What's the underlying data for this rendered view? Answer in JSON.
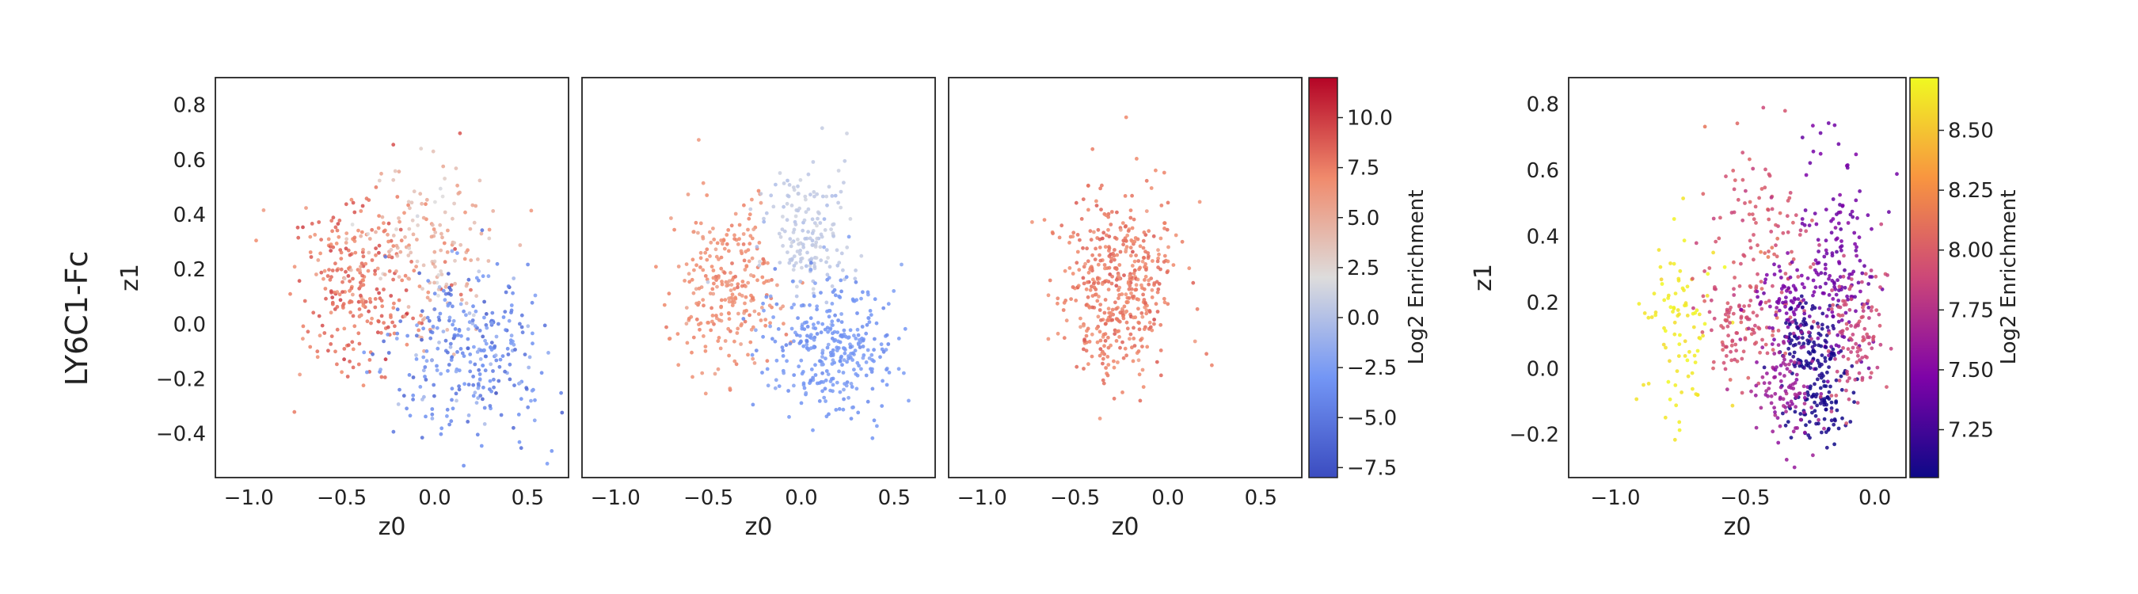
{
  "figure": {
    "row_label": "LY6C1-Fc"
  },
  "colorbars": [
    {
      "label": "Log2 Enrichment",
      "colormap": "coolwarm",
      "range": [
        -8.0,
        12.0
      ],
      "ticks": [
        -7.5,
        -5.0,
        -2.5,
        0.0,
        2.5,
        5.0,
        7.5,
        10.0
      ],
      "tick_labels": [
        "−7.5",
        "−5.0",
        "−2.5",
        "0.0",
        "2.5",
        "5.0",
        "7.5",
        "10.0"
      ]
    },
    {
      "label": "Log2 Enrichment",
      "colormap": "plasma",
      "range": [
        7.05,
        8.72
      ],
      "ticks": [
        7.25,
        7.5,
        7.75,
        8.0,
        8.25,
        8.5
      ],
      "tick_labels": [
        "7.25",
        "7.50",
        "7.75",
        "8.00",
        "8.25",
        "8.50"
      ]
    }
  ],
  "chart_data": [
    {
      "type": "scatter",
      "title": "",
      "xlabel": "z0",
      "ylabel": "z1",
      "xlim": [
        -1.18,
        0.72
      ],
      "ylim": [
        -0.56,
        0.9
      ],
      "xticks": [
        -1.0,
        -0.5,
        0.0,
        0.5
      ],
      "xtick_labels": [
        "−1.0",
        "−0.5",
        "0.0",
        "0.5"
      ],
      "yticks": [
        -0.4,
        -0.2,
        0.0,
        0.2,
        0.4,
        0.6,
        0.8
      ],
      "ytick_labels": [
        "−0.4",
        "−0.2",
        "0.0",
        "0.2",
        "0.4",
        "0.6",
        "0.8"
      ],
      "grid": false,
      "colorbar_index": 0,
      "clusters": [
        {
          "center": [
            -0.42,
            0.13
          ],
          "spread": [
            0.17,
            0.15
          ],
          "n": 260,
          "value": 7.8,
          "value_sd": 1.0
        },
        {
          "center": [
            -0.05,
            0.3
          ],
          "spread": [
            0.18,
            0.16
          ],
          "n": 160,
          "value": 4.5,
          "value_sd": 1.6
        },
        {
          "center": [
            0.2,
            -0.08
          ],
          "spread": [
            0.2,
            0.15
          ],
          "n": 300,
          "value": -3.8,
          "value_sd": 1.6
        }
      ]
    },
    {
      "type": "scatter",
      "title": "",
      "xlabel": "z0",
      "ylabel": "",
      "xlim": [
        -1.18,
        0.72
      ],
      "ylim": [
        -0.56,
        0.9
      ],
      "xticks": [
        -1.0,
        -0.5,
        0.0,
        0.5
      ],
      "xtick_labels": [
        "−1.0",
        "−0.5",
        "0.0",
        "0.5"
      ],
      "grid": false,
      "colorbar_index": 0,
      "clusters": [
        {
          "center": [
            -0.42,
            0.14
          ],
          "spread": [
            0.15,
            0.16
          ],
          "n": 260,
          "value": 6.8,
          "value_sd": 0.6
        },
        {
          "center": [
            0.03,
            0.33
          ],
          "spread": [
            0.13,
            0.13
          ],
          "n": 170,
          "value": 0.6,
          "value_sd": 0.5
        },
        {
          "center": [
            0.17,
            -0.08
          ],
          "spread": [
            0.17,
            0.12
          ],
          "n": 320,
          "value": -3.0,
          "value_sd": 0.5
        }
      ]
    },
    {
      "type": "scatter",
      "title": "",
      "xlabel": "z0",
      "ylabel": "",
      "xlim": [
        -1.18,
        0.72
      ],
      "ylim": [
        -0.56,
        0.9
      ],
      "xticks": [
        -1.0,
        -0.5,
        0.0,
        0.5
      ],
      "xtick_labels": [
        "−1.0",
        "−0.5",
        "0.0",
        "0.5"
      ],
      "grid": false,
      "colorbar_index": 0,
      "clusters": [
        {
          "center": [
            -0.27,
            0.15
          ],
          "spread": [
            0.15,
            0.16
          ],
          "n": 460,
          "value": 7.5,
          "value_sd": 0.7
        }
      ]
    },
    {
      "type": "scatter",
      "title": "",
      "xlabel": "z0",
      "ylabel": "z1",
      "xlim": [
        -1.18,
        0.12
      ],
      "ylim": [
        -0.33,
        0.88
      ],
      "xticks": [
        -1.0,
        -0.5,
        0.0
      ],
      "xtick_labels": [
        "−1.0",
        "−0.5",
        "0.0"
      ],
      "yticks": [
        -0.2,
        0.0,
        0.2,
        0.4,
        0.6,
        0.8
      ],
      "ytick_labels": [
        "−0.2",
        "0.0",
        "0.2",
        "0.4",
        "0.6",
        "0.8"
      ],
      "grid": false,
      "colorbar_index": 1,
      "clusters": [
        {
          "center": [
            -0.74,
            0.12
          ],
          "spread": [
            0.09,
            0.14
          ],
          "n": 90,
          "value": 8.65,
          "value_sd": 0.04
        },
        {
          "center": [
            -0.46,
            0.32
          ],
          "spread": [
            0.11,
            0.18
          ],
          "n": 140,
          "value": 7.95,
          "value_sd": 0.06
        },
        {
          "center": [
            -0.52,
            0.12
          ],
          "spread": [
            0.06,
            0.07
          ],
          "n": 70,
          "value": 7.95,
          "value_sd": 0.04
        },
        {
          "center": [
            -0.14,
            0.34
          ],
          "spread": [
            0.08,
            0.17
          ],
          "n": 160,
          "value": 7.42,
          "value_sd": 0.04
        },
        {
          "center": [
            -0.33,
            0.2
          ],
          "spread": [
            0.06,
            0.05
          ],
          "n": 70,
          "value": 7.44,
          "value_sd": 0.03
        },
        {
          "center": [
            -0.26,
            0.1
          ],
          "spread": [
            0.06,
            0.06
          ],
          "n": 90,
          "value": 7.12,
          "value_sd": 0.03
        },
        {
          "center": [
            -0.21,
            -0.07
          ],
          "spread": [
            0.06,
            0.09
          ],
          "n": 120,
          "value": 7.08,
          "value_sd": 0.02
        },
        {
          "center": [
            -0.35,
            -0.03
          ],
          "spread": [
            0.07,
            0.09
          ],
          "n": 110,
          "value": 7.62,
          "value_sd": 0.05
        },
        {
          "center": [
            -0.07,
            0.1
          ],
          "spread": [
            0.06,
            0.12
          ],
          "n": 110,
          "value": 7.88,
          "value_sd": 0.05
        }
      ]
    }
  ]
}
